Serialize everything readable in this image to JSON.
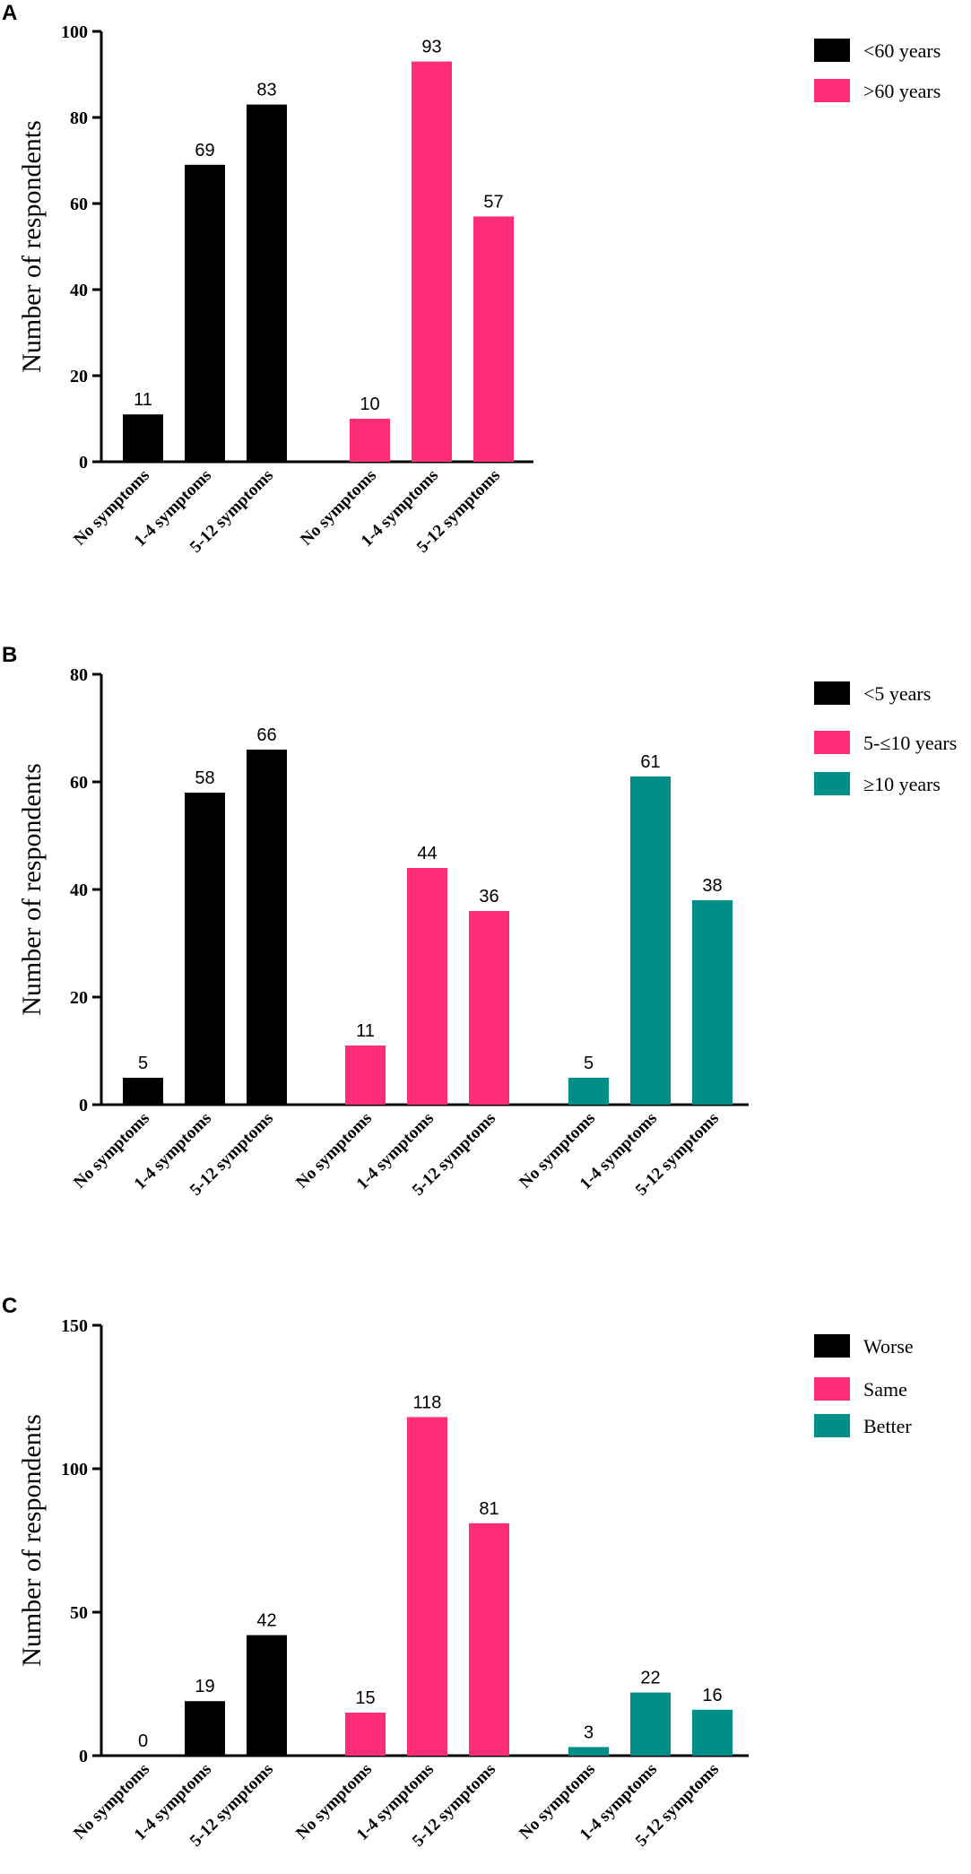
{
  "colors": {
    "black": "#000000",
    "pink": "#FF2D78",
    "teal": "#008E8A"
  },
  "chart_data": [
    {
      "panel": "A",
      "type": "bar",
      "ylabel": "Number of respondents",
      "ylim": [
        0,
        100
      ],
      "yticks": [
        "0",
        "20",
        "40",
        "60",
        "80",
        "100"
      ],
      "categories": [
        "No symptoms",
        "1-4 symptoms",
        "5-12 symptoms"
      ],
      "series": [
        {
          "name": "<60 years",
          "color": "#000000",
          "values": [
            11,
            69,
            83
          ]
        },
        {
          "name": ">60 years",
          "color": "#FF2D78",
          "values": [
            10,
            93,
            57
          ]
        }
      ]
    },
    {
      "panel": "B",
      "type": "bar",
      "ylabel": "Number of respondents",
      "ylim": [
        0,
        80
      ],
      "yticks": [
        "0",
        "20",
        "40",
        "60",
        "80"
      ],
      "categories": [
        "No symptoms",
        "1-4 symptoms",
        "5-12 symptoms"
      ],
      "series": [
        {
          "name": "<5 years",
          "color": "#000000",
          "values": [
            5,
            58,
            66
          ]
        },
        {
          "name": "5-≤10 years",
          "color": "#FF2D78",
          "values": [
            11,
            44,
            36
          ]
        },
        {
          "name": "≥10 years",
          "color": "#008E8A",
          "values": [
            5,
            61,
            38
          ]
        }
      ]
    },
    {
      "panel": "C",
      "type": "bar",
      "ylabel": "Number of respondents",
      "ylim": [
        0,
        150
      ],
      "yticks": [
        "0",
        "50",
        "100",
        "150"
      ],
      "categories": [
        "No symptoms",
        "1-4 symptoms",
        "5-12 symptoms"
      ],
      "series": [
        {
          "name": "Worse",
          "color": "#000000",
          "values": [
            0,
            19,
            42
          ]
        },
        {
          "name": "Same",
          "color": "#FF2D78",
          "values": [
            15,
            118,
            81
          ]
        },
        {
          "name": "Better",
          "color": "#008E8A",
          "values": [
            3,
            22,
            16
          ]
        }
      ]
    }
  ]
}
